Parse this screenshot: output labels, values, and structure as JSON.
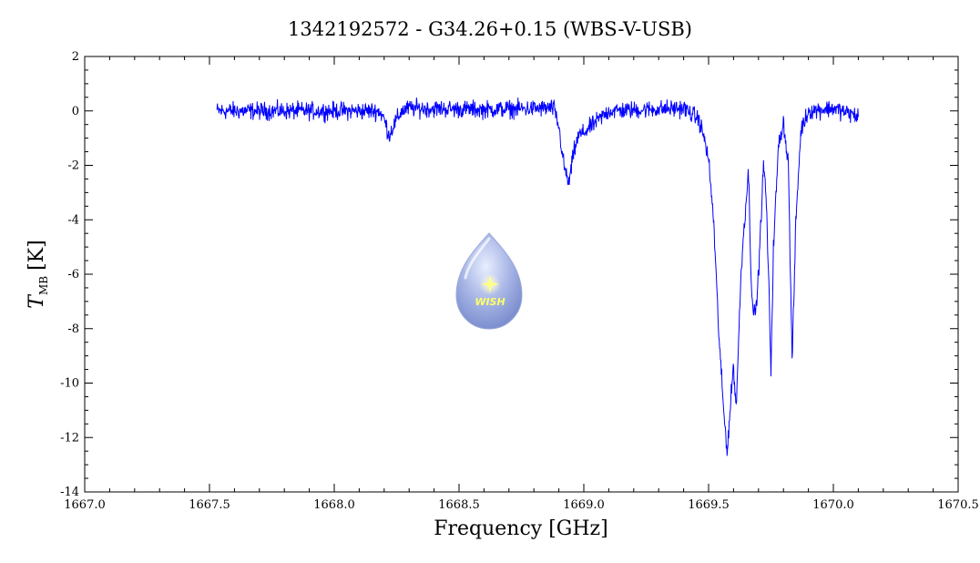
{
  "chart_data": {
    "type": "line",
    "title": "1342192572 - G34.26+0.15 (WBS-V-USB)",
    "xlabel": "Frequency [GHz]",
    "ylabel_main": "T",
    "ylabel_sub": "MB",
    "ylabel_unit": "[K]",
    "xlim": [
      1667.0,
      1670.5
    ],
    "ylim": [
      -14,
      2
    ],
    "x_ticks": [
      1667.0,
      1667.5,
      1668.0,
      1668.5,
      1669.0,
      1669.5,
      1670.0,
      1670.5
    ],
    "x_tick_labels": [
      "1667.0",
      "1667.5",
      "1668.0",
      "1668.5",
      "1669.0",
      "1669.5",
      "1670.0",
      "1670.5"
    ],
    "y_ticks": [
      2,
      0,
      -2,
      -4,
      -6,
      -8,
      -10,
      -12,
      -14
    ],
    "y_tick_labels": [
      "2",
      "0",
      "-2",
      "-4",
      "-6",
      "-8",
      "-10",
      "-12",
      "-14"
    ],
    "grid": false,
    "legend": "none",
    "series_color": "#0000ff",
    "noise_rms": 0.2,
    "series": [
      {
        "x": [
          1667.53,
          1667.7,
          1668.0,
          1668.18,
          1668.2,
          1668.22,
          1668.24,
          1668.27,
          1668.3,
          1668.6,
          1668.88,
          1668.9,
          1668.92,
          1668.94,
          1668.96,
          1668.98,
          1669.0,
          1669.05,
          1669.1,
          1669.4,
          1669.46,
          1669.48,
          1669.5,
          1669.52,
          1669.54,
          1669.56,
          1669.575,
          1669.59,
          1669.6,
          1669.61,
          1669.62,
          1669.63,
          1669.64,
          1669.66,
          1669.67,
          1669.68,
          1669.69,
          1669.7,
          1669.72,
          1669.73,
          1669.74,
          1669.75,
          1669.76,
          1669.78,
          1669.8,
          1669.82,
          1669.83,
          1669.835,
          1669.85,
          1669.87,
          1669.9,
          1670.0,
          1670.1
        ],
        "y": [
          0.0,
          0.0,
          0.0,
          0.0,
          -0.3,
          -0.9,
          -0.5,
          0.0,
          0.1,
          0.05,
          0.1,
          -0.6,
          -2.0,
          -2.7,
          -1.5,
          -0.9,
          -0.8,
          -0.4,
          0.0,
          0.1,
          -0.3,
          -0.9,
          -1.8,
          -4.0,
          -8.0,
          -11.0,
          -12.5,
          -10.5,
          -9.3,
          -11.0,
          -8.5,
          -6.0,
          -4.5,
          -2.2,
          -6.0,
          -7.5,
          -7.3,
          -6.0,
          -2.0,
          -3.0,
          -6.0,
          -9.5,
          -5.0,
          -1.3,
          -0.4,
          -2.0,
          -7.0,
          -9.2,
          -4.0,
          -0.7,
          0.0,
          0.1,
          -0.2
        ]
      }
    ]
  }
}
